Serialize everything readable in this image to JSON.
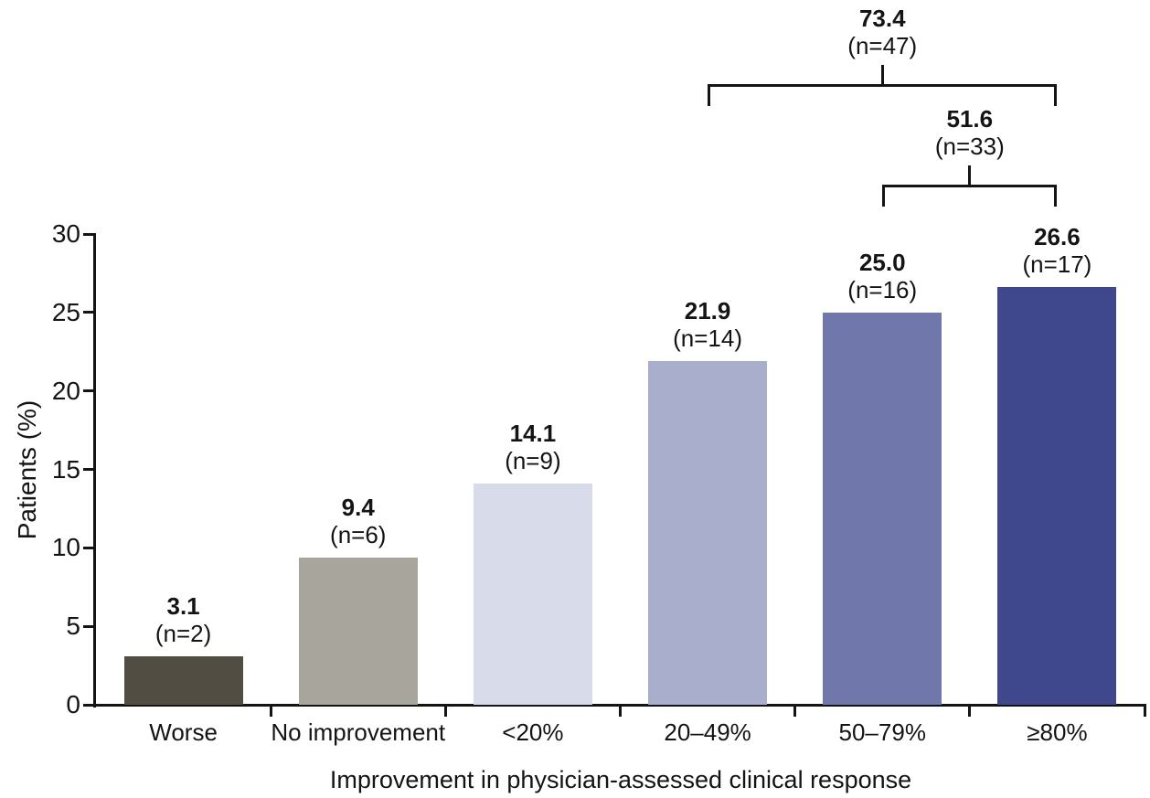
{
  "chart_data": {
    "type": "bar",
    "categories": [
      "Worse",
      "No improvement",
      "<20%",
      "20–49%",
      "50–79%",
      "≥80%"
    ],
    "values": [
      3.1,
      9.4,
      14.1,
      21.9,
      25.0,
      26.6
    ],
    "counts": [
      2,
      6,
      9,
      14,
      16,
      17
    ],
    "bar_colors": [
      "#524d42",
      "#a8a59c",
      "#d8dbe9",
      "#a9aecd",
      "#6f77ab",
      "#3f478d"
    ],
    "xlabel": "Improvement in physician-assessed clinical response",
    "ylabel": "Patients (%)",
    "ylim": [
      0,
      30
    ],
    "yticks": [
      0,
      5,
      10,
      15,
      20,
      25,
      30
    ],
    "grid": false,
    "legend": null,
    "bar_label_format": "value (n=count), value bold",
    "annotations": [
      {
        "value": 73.4,
        "n": 47,
        "from": 3,
        "to": 5
      },
      {
        "value": 51.6,
        "n": 33,
        "from": 4,
        "to": 5
      }
    ]
  }
}
